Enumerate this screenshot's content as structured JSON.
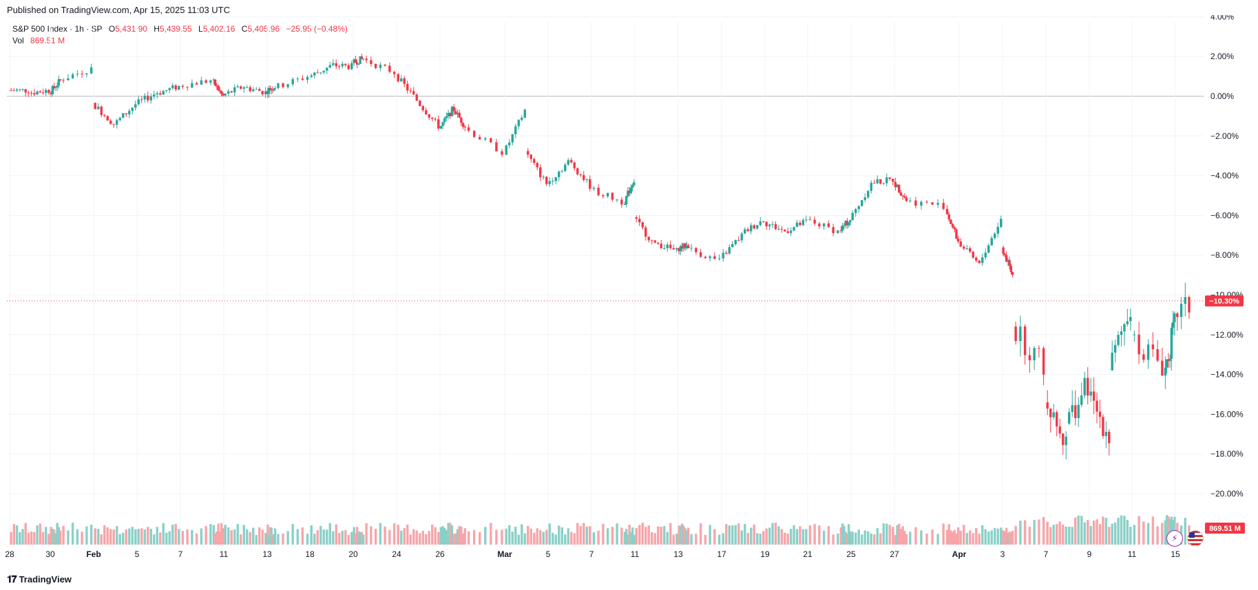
{
  "published": "Published on TradingView.com, Apr 15, 2025 11:03 UTC",
  "legend": {
    "symbol": "S&P 500 Index · 1h · SP",
    "open_label": "O",
    "open": "5,431.90",
    "high_label": "H",
    "high": "5,439.55",
    "low_label": "L",
    "low": "5,402.16",
    "close_label": "C",
    "close": "5,405.96",
    "change": "−25.95 (−0.48%)",
    "vol_label": "Vol",
    "vol": "869.51 M"
  },
  "footer": {
    "brand": "TradingView",
    "logo": "TV-logo-icon"
  },
  "colors": {
    "up": "#26a69a",
    "down": "#f23645",
    "up_vol": "#8bd0c8",
    "down_vol": "#f7a5a9",
    "grid": "#f0f3fa",
    "axis_text": "#131722"
  },
  "chart_data": {
    "type": "candlestick",
    "y_scale": "percent",
    "ylim": [
      -20,
      4
    ],
    "y_ticks": [
      "4.00%",
      "2.00%",
      "0.00%",
      "−2.00%",
      "−4.00%",
      "−6.00%",
      "−8.00%",
      "−10.00%",
      "−12.00%",
      "−14.00%",
      "−16.00%",
      "−18.00%",
      "−20.00%"
    ],
    "y_tick_values": [
      4,
      2,
      0,
      -2,
      -4,
      -6,
      -8,
      -10,
      -12,
      -14,
      -16,
      -18,
      -20
    ],
    "x_ticks": [
      "28",
      "30",
      "Feb",
      "5",
      "7",
      "11",
      "13",
      "18",
      "20",
      "24",
      "26",
      "Mar",
      "5",
      "7",
      "11",
      "13",
      "17",
      "19",
      "21",
      "25",
      "27",
      "Apr",
      "3",
      "7",
      "9",
      "11",
      "15"
    ],
    "x_tick_dates": [
      "2025-01-28",
      "2025-01-30",
      "2025-02-03",
      "2025-02-05",
      "2025-02-07",
      "2025-02-11",
      "2025-02-13",
      "2025-02-18",
      "2025-02-20",
      "2025-02-24",
      "2025-02-26",
      "2025-03-03",
      "2025-03-05",
      "2025-03-07",
      "2025-03-11",
      "2025-03-13",
      "2025-03-17",
      "2025-03-19",
      "2025-03-21",
      "2025-03-25",
      "2025-03-27",
      "2025-04-01",
      "2025-04-03",
      "2025-04-07",
      "2025-04-09",
      "2025-04-11",
      "2025-04-15"
    ],
    "last_price_label": "−10.30%",
    "last_price_value": -10.3,
    "last_volume_label": "869.51 M",
    "close_path_percent": [
      {
        "date": "2025-01-28",
        "close": 0.3
      },
      {
        "date": "2025-01-29",
        "close": 0.3
      },
      {
        "date": "2025-01-30",
        "close": 0.8
      },
      {
        "date": "2025-01-31",
        "close": 1.4
      },
      {
        "date": "2025-02-03",
        "close": -1.4
      },
      {
        "date": "2025-02-04",
        "close": -0.4
      },
      {
        "date": "2025-02-05",
        "close": 0.2
      },
      {
        "date": "2025-02-06",
        "close": 0.5
      },
      {
        "date": "2025-02-07",
        "close": 0.8
      },
      {
        "date": "2025-02-10",
        "close": 0.0
      },
      {
        "date": "2025-02-11",
        "close": 0.5
      },
      {
        "date": "2025-02-12",
        "close": 0.2
      },
      {
        "date": "2025-02-13",
        "close": 0.5
      },
      {
        "date": "2025-02-14",
        "close": 1.0
      },
      {
        "date": "2025-02-18",
        "close": 1.5
      },
      {
        "date": "2025-02-19",
        "close": 1.5
      },
      {
        "date": "2025-02-20",
        "close": 1.9
      },
      {
        "date": "2025-02-21",
        "close": 1.2
      },
      {
        "date": "2025-02-24",
        "close": -0.2
      },
      {
        "date": "2025-02-25",
        "close": -1.5
      },
      {
        "date": "2025-02-26",
        "close": -0.7
      },
      {
        "date": "2025-02-27",
        "close": -1.5
      },
      {
        "date": "2025-02-28",
        "close": -2.8
      },
      {
        "date": "2025-03-03",
        "close": -0.7
      },
      {
        "date": "2025-03-04",
        "close": -4.4
      },
      {
        "date": "2025-03-05",
        "close": -3.3
      },
      {
        "date": "2025-03-06",
        "close": -4.5
      },
      {
        "date": "2025-03-07",
        "close": -5.3
      },
      {
        "date": "2025-03-10",
        "close": -4.2
      },
      {
        "date": "2025-03-11",
        "close": -7.5
      },
      {
        "date": "2025-03-12",
        "close": -7.8
      },
      {
        "date": "2025-03-13",
        "close": -7.5
      },
      {
        "date": "2025-03-14",
        "close": -8.3
      },
      {
        "date": "2025-03-17",
        "close": -7.0
      },
      {
        "date": "2025-03-18",
        "close": -6.2
      },
      {
        "date": "2025-03-19",
        "close": -6.8
      },
      {
        "date": "2025-03-20",
        "close": -6.3
      },
      {
        "date": "2025-03-21",
        "close": -6.8
      },
      {
        "date": "2025-03-24",
        "close": -6.2
      },
      {
        "date": "2025-03-25",
        "close": -4.4
      },
      {
        "date": "2025-03-26",
        "close": -4.2
      },
      {
        "date": "2025-03-27",
        "close": -5.2
      },
      {
        "date": "2025-03-28",
        "close": -5.5
      },
      {
        "date": "2025-03-31",
        "close": -7.3
      },
      {
        "date": "2025-04-01",
        "close": -8.5
      },
      {
        "date": "2025-04-02",
        "close": -6.2
      },
      {
        "date": "2025-04-03",
        "close": -9.0
      },
      {
        "date": "2025-04-04",
        "close": -13.5
      },
      {
        "date": "2025-04-07",
        "close": -17.5
      },
      {
        "date": "2025-04-08",
        "close": -14.5
      },
      {
        "date": "2025-04-09",
        "close": -17.0
      },
      {
        "date": "2025-04-10",
        "close": -10.5
      },
      {
        "date": "2025-04-11",
        "close": -13.5
      },
      {
        "date": "2025-04-14",
        "close": -11.5
      },
      {
        "date": "2025-04-15",
        "close": -10.3
      }
    ]
  }
}
